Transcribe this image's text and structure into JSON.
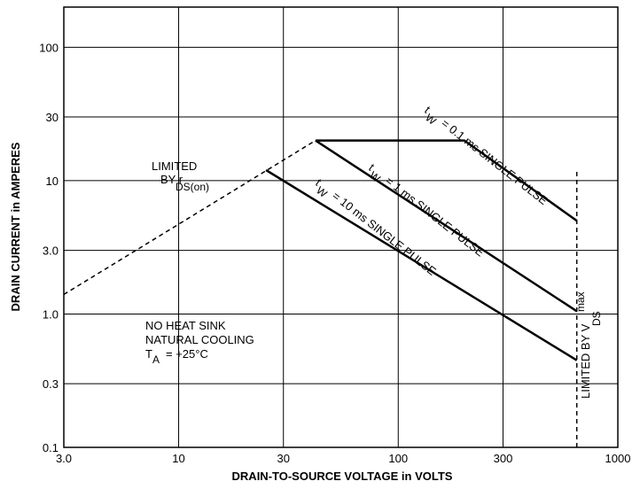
{
  "chart_data": {
    "type": "line",
    "title": "",
    "xlabel": "DRAIN-TO-SOURCE VOLTAGE in VOLTS",
    "ylabel": "DRAIN CURRENT in AMPERES",
    "xscale": "log",
    "yscale": "log",
    "xlim": [
      3,
      1000
    ],
    "ylim": [
      0.1,
      200
    ],
    "grid": true,
    "x_ticks": [
      3,
      10,
      30,
      100,
      300,
      1000
    ],
    "x_tick_labels": [
      "3.0",
      "10",
      "30",
      "100",
      "300",
      "1000"
    ],
    "y_ticks": [
      0.1,
      0.3,
      1,
      3,
      10,
      30,
      100
    ],
    "y_tick_labels": [
      "0.1",
      "0.3",
      "1.0",
      "3.0",
      "10",
      "30",
      "100"
    ],
    "series": [
      {
        "style": "dashed",
        "x": [
          3,
          42
        ],
        "y": [
          1.4,
          20
        ]
      },
      {
        "style": "solid",
        "x": [
          42,
          200,
          650
        ],
        "y": [
          20,
          20,
          5
        ]
      },
      {
        "style": "solid",
        "x": [
          42,
          650
        ],
        "y": [
          20,
          1.05
        ]
      },
      {
        "style": "solid",
        "x": [
          25,
          650
        ],
        "y": [
          12,
          0.45
        ]
      },
      {
        "style": "dashed",
        "x": [
          650,
          650
        ],
        "y": [
          0.1,
          12
        ]
      }
    ],
    "annotations": {
      "limited_rds": {
        "line1": "LIMITED",
        "line2": "BY r",
        "sub": "DS(on)"
      },
      "pulse_01": {
        "t": "t",
        "w": "W",
        "text": "= 0.1 ms SINGLE PULSE"
      },
      "pulse_1": {
        "t": "t",
        "w": "W",
        "text": "= 1 ms SINGLE PULSE"
      },
      "pulse_10": {
        "t": "t",
        "w": "W",
        "text": "= 10 ms SINGLE PULSE"
      },
      "vds_limit": {
        "text": "LIMITED BY V",
        "sub": "DS",
        "sup": "max"
      },
      "conditions": {
        "line1": "NO HEAT SINK",
        "line2": "NATURAL COOLING",
        "ta": "T",
        "ta_sub": "A",
        "ta_val": "= +25°C"
      }
    }
  }
}
